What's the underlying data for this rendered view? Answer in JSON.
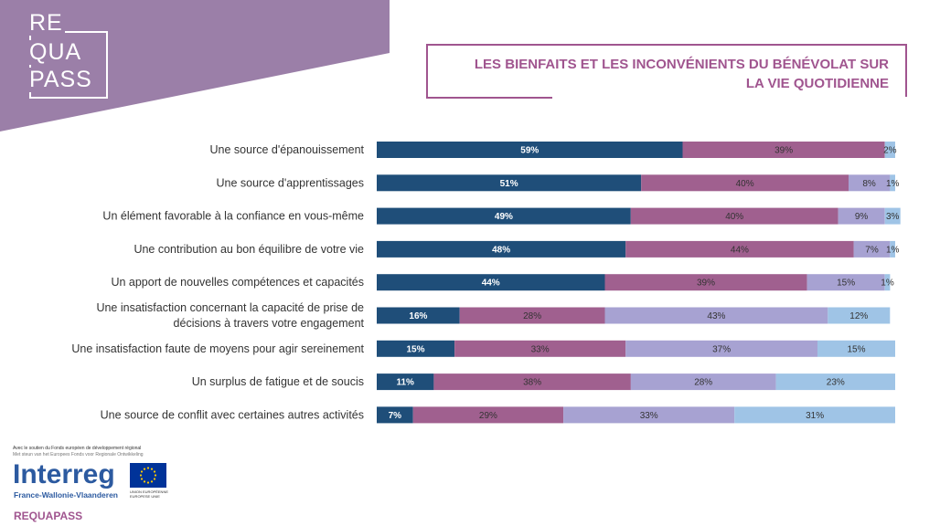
{
  "logo": {
    "line1": "RE",
    "line2": "QUA",
    "line3": "PASS"
  },
  "title_line1": "LES BIENFAITS ET LES INCONVÉNIENTS DU BÉNÉVOLAT SUR",
  "title_line2": "LA VIE QUOTIDIENNE",
  "colors": {
    "banner": "#9b7fa8",
    "accent": "#a0558f",
    "segments": [
      "#1f4e79",
      "#a0608f",
      "#a7a2d2",
      "#9fc4e6"
    ]
  },
  "chart_data": {
    "type": "bar",
    "orientation": "horizontal",
    "stacked": true,
    "percent_stacked": true,
    "categories": [
      "Une source d'épanouissement",
      "Une source d'apprentissages",
      "Un élément favorable à la confiance en vous-même",
      "Une contribution au bon équilibre de votre vie",
      "Un apport de nouvelles compétences et capacités",
      "Une insatisfaction concernant la capacité de prise de décisions à travers votre engagement",
      "Une insatisfaction faute de moyens pour agir sereinement",
      "Un surplus de fatigue et de soucis",
      "Une source de conflit avec certaines autres activités"
    ],
    "category_lines": [
      [
        "Une source d'épanouissement"
      ],
      [
        "Une source d'apprentissages"
      ],
      [
        "Un élément favorable à la confiance en vous-même"
      ],
      [
        "Une contribution au bon équilibre de votre vie"
      ],
      [
        "Un apport de nouvelles compétences et capacités"
      ],
      [
        "Une insatisfaction concernant la capacité de prise de",
        "décisions à travers votre engagement"
      ],
      [
        "Une insatisfaction faute de moyens pour agir sereinement"
      ],
      [
        "Un surplus de fatigue et de soucis"
      ],
      [
        "Une source de conflit avec certaines autres activités"
      ]
    ],
    "series": [
      {
        "values": [
          59,
          51,
          49,
          48,
          44,
          16,
          15,
          11,
          7
        ]
      },
      {
        "values": [
          39,
          40,
          40,
          44,
          39,
          28,
          33,
          38,
          29
        ]
      },
      {
        "values": [
          0,
          8,
          9,
          7,
          15,
          43,
          37,
          28,
          33
        ]
      },
      {
        "values": [
          2,
          1,
          3,
          1,
          1,
          12,
          15,
          23,
          31
        ]
      }
    ],
    "data_labels": [
      [
        "59%",
        "39%",
        "",
        "2%"
      ],
      [
        "51%",
        "40%",
        "8%",
        "1%"
      ],
      [
        "49%",
        "40%",
        "9%",
        "3%"
      ],
      [
        "48%",
        "44%",
        "7%",
        "1%"
      ],
      [
        "44%",
        "39%",
        "15%",
        "1%"
      ],
      [
        "16%",
        "28%",
        "43%",
        "12%"
      ],
      [
        "15%",
        "33%",
        "37%",
        "15%"
      ],
      [
        "11%",
        "38%",
        "28%",
        "23%"
      ],
      [
        "7%",
        "29%",
        "33%",
        "31%"
      ]
    ],
    "xlim": [
      0,
      100
    ],
    "legend": "none",
    "grid": false
  },
  "footer": {
    "support_fr": "Avec le soutien du Fonds européen de développement régional",
    "support_nl": "Met steun van het Europees Fonds voor Regionale Ontwikkeling",
    "interreg": "Interreg",
    "interreg_sub": "France-Wallonie-Vlaanderen",
    "eu_caption_1": "UNION EUROPÉENNE",
    "eu_caption_2": "EUROPESE UNIE",
    "project": "REQUAPASS"
  }
}
